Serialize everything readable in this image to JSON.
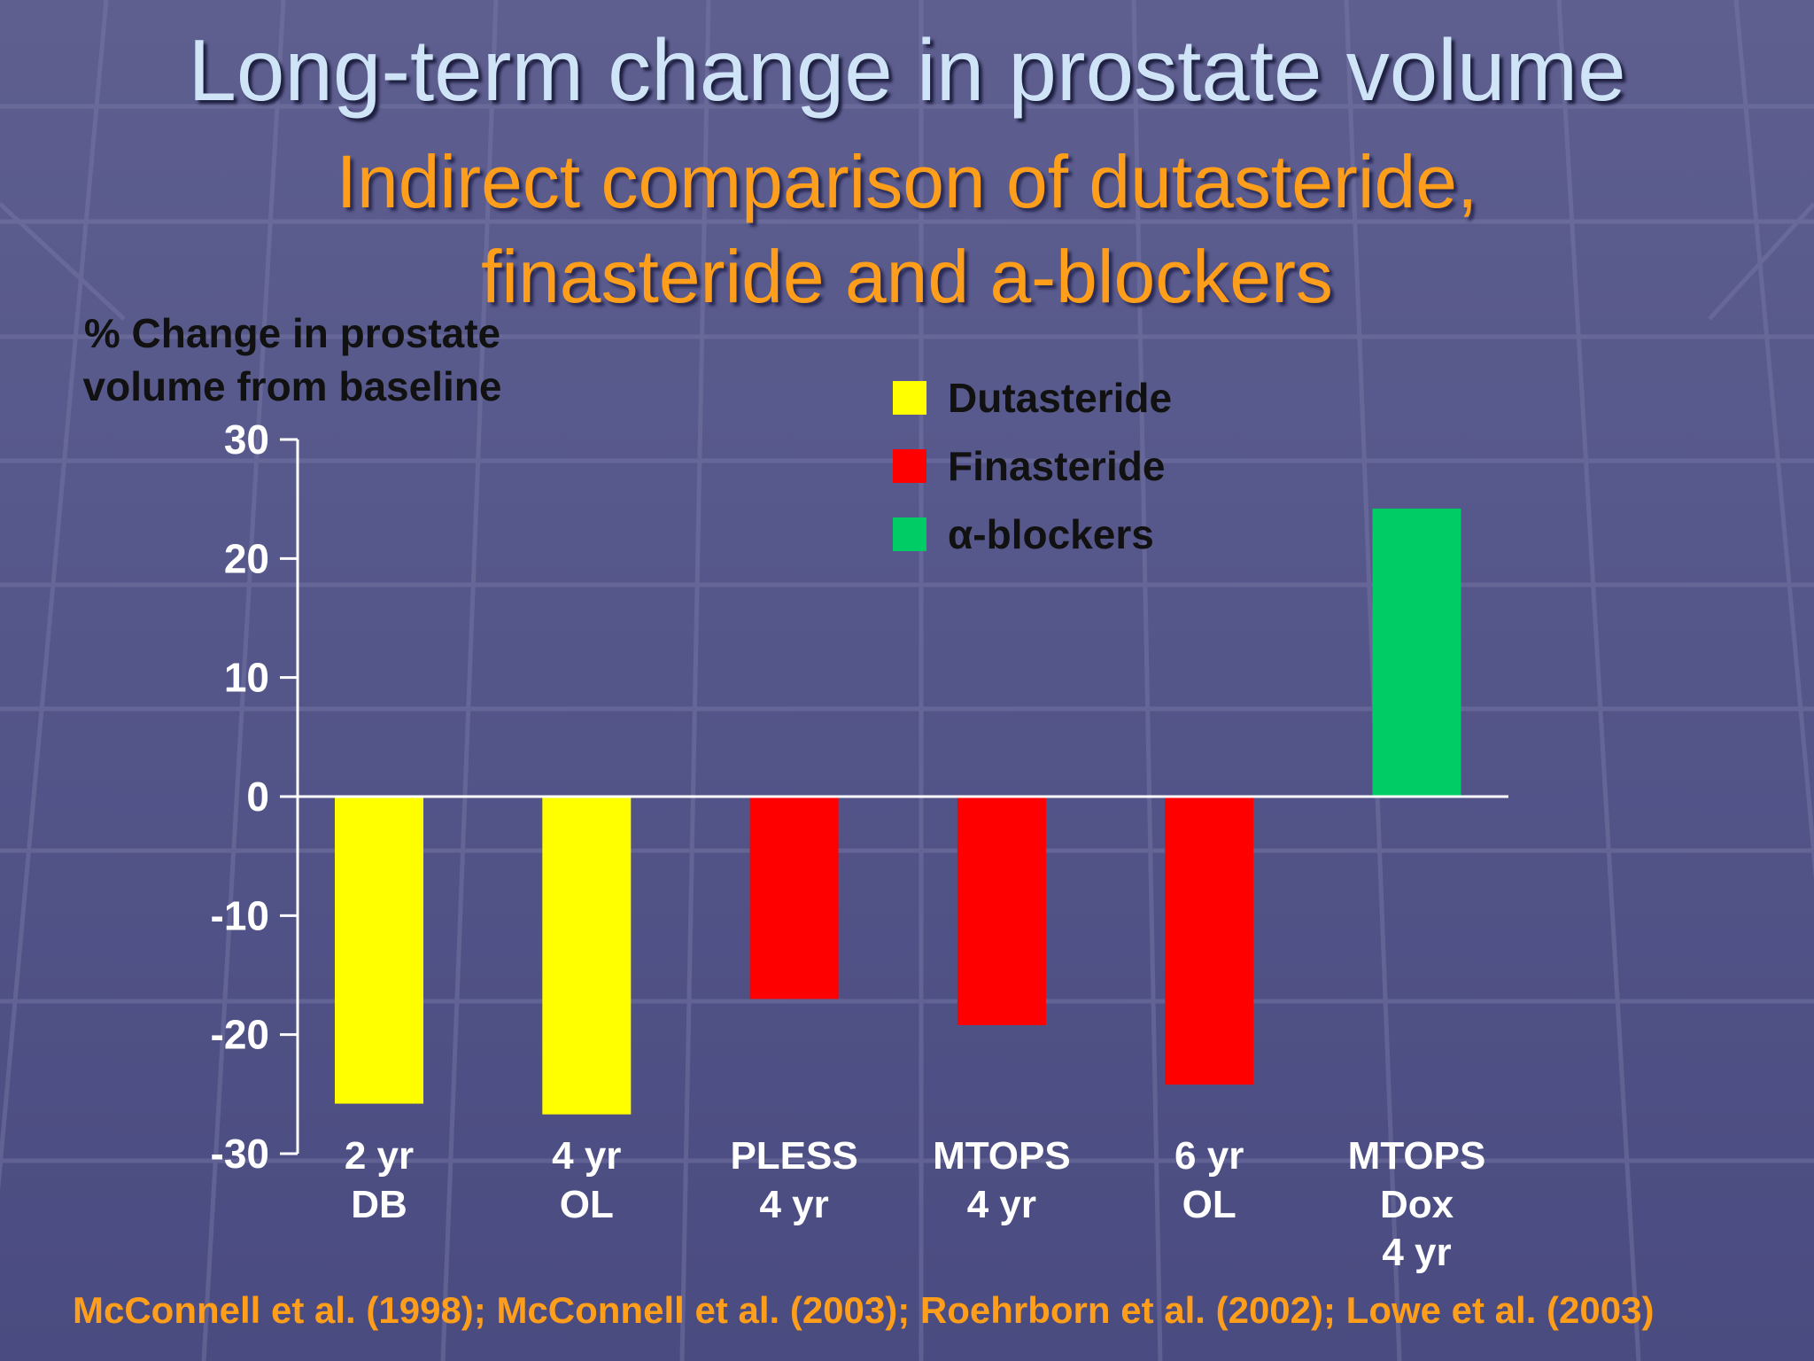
{
  "slide": {
    "title": "Long-term change in prostate volume",
    "subtitle_lines": [
      "Indirect comparison of dutasteride,",
      "finasteride and a-blockers"
    ],
    "citation": "McConnell et al. (1998); McConnell et al. (2003); Roehrborn et al. (2002); Lowe et al. (2003)"
  },
  "colors": {
    "dutasteride": "#ffff00",
    "finasteride": "#ff0000",
    "alpha_blockers": "#00cc66",
    "axis": "#ffffff"
  },
  "chart_data": {
    "type": "bar",
    "ylabel_lines": [
      "% Change in prostate",
      "volume from baseline"
    ],
    "ylim": [
      -30,
      30
    ],
    "yticks": [
      "30",
      "20",
      "10",
      "0",
      "-10",
      "-20",
      "-30"
    ],
    "ytick_values": [
      30,
      20,
      10,
      0,
      -10,
      -20,
      -30
    ],
    "legend": [
      {
        "name": "Dutasteride",
        "color": "#ffff00"
      },
      {
        "name": "Finasteride",
        "color": "#ff0000"
      },
      {
        "name": "α-blockers",
        "color": "#00cc66"
      }
    ],
    "legend_position": "top-center",
    "grid": false,
    "bars": [
      {
        "label_lines": [
          "2 yr",
          "DB"
        ],
        "value": -25.8,
        "series": "Dutasteride"
      },
      {
        "label_lines": [
          "4 yr",
          "OL"
        ],
        "value": -26.7,
        "series": "Dutasteride"
      },
      {
        "label_lines": [
          "PLESS",
          "4 yr"
        ],
        "value": -17,
        "series": "Finasteride"
      },
      {
        "label_lines": [
          "MTOPS",
          "4 yr"
        ],
        "value": -19.2,
        "series": "Finasteride"
      },
      {
        "label_lines": [
          "6 yr",
          "OL"
        ],
        "value": -24.2,
        "series": "Finasteride"
      },
      {
        "label_lines": [
          "MTOPS",
          "Dox",
          "4 yr"
        ],
        "value": 24.2,
        "series": "α-blockers"
      }
    ]
  }
}
